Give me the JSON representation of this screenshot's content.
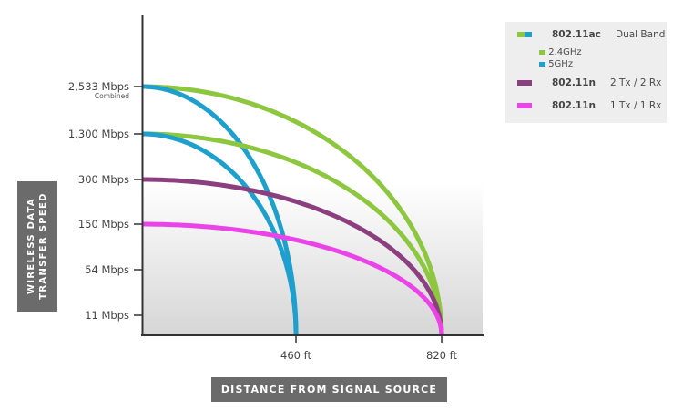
{
  "chart_data": {
    "type": "line",
    "ylabel_lines": [
      "WIRELESS DATA",
      "TRANSFER SPEED"
    ],
    "xlabel": "DISTANCE FROM SIGNAL SOURCE",
    "y_ticks": [
      {
        "label": "2,533 Mbps",
        "sublabel": "Combined"
      },
      {
        "label": "1,300 Mbps"
      },
      {
        "label": "300 Mbps"
      },
      {
        "label": "150 Mbps"
      },
      {
        "label": "54 Mbps"
      },
      {
        "label": "11 Mbps"
      }
    ],
    "x_ticks": [
      "460 ft",
      "820 ft"
    ],
    "series": [
      {
        "name": "2.4GHz",
        "group": "802.11ac",
        "color": "#8dc63f",
        "start": "2,533 Mbps",
        "end": "820 ft"
      },
      {
        "name": "5GHz",
        "group": "802.11ac",
        "color": "#1fa0cc",
        "start": "2,533 Mbps",
        "end": "460 ft"
      },
      {
        "name": "2.4GHz",
        "group": "802.11ac",
        "color": "#8dc63f",
        "start": "1,300 Mbps",
        "end": "820 ft"
      },
      {
        "name": "5GHz",
        "group": "802.11ac",
        "color": "#1fa0cc",
        "start": "1,300 Mbps",
        "end": "460 ft"
      },
      {
        "name": "802.11n 2 Tx / 2 Rx",
        "color": "#8b3f7e",
        "start": "300 Mbps",
        "end": "820 ft"
      },
      {
        "name": "802.11n 1 Tx / 1 Rx",
        "color": "#ea44e8",
        "start": "150 Mbps",
        "end": "820 ft"
      }
    ],
    "legend": {
      "entries": [
        {
          "name": "802.11ac",
          "note": "Dual Band",
          "colors": [
            "#8dc63f",
            "#1fa0cc"
          ],
          "sub": [
            {
              "label": "2.4GHz",
              "color": "#8dc63f"
            },
            {
              "label": "5GHz",
              "color": "#1fa0cc"
            }
          ]
        },
        {
          "name": "802.11n",
          "note": "2 Tx / 2 Rx",
          "colors": [
            "#8b3f7e"
          ]
        },
        {
          "name": "802.11n",
          "note": "1 Tx / 1 Rx",
          "colors": [
            "#ea44e8"
          ]
        }
      ],
      "placement": "top-right"
    },
    "grid": false
  }
}
